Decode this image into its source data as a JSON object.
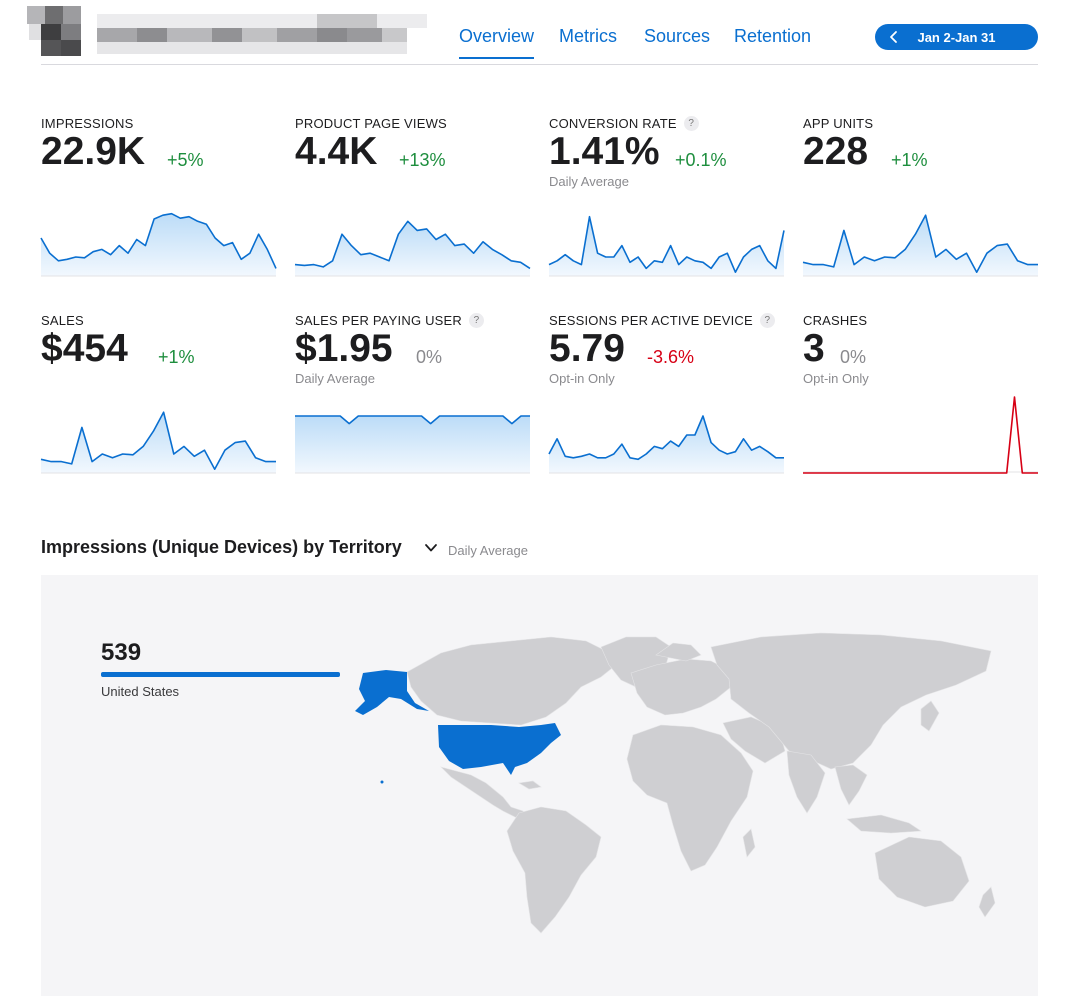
{
  "colors": {
    "accent": "#0a6fd0",
    "positive": "#1e8e3e",
    "negative": "#d70015",
    "neutral": "#8a8a8e",
    "crash_line": "#d70015",
    "map_land": "#cfcfd2",
    "map_highlight": "#0a6fd0"
  },
  "nav": {
    "tabs": [
      {
        "label": "Overview",
        "active": true
      },
      {
        "label": "Metrics",
        "active": false
      },
      {
        "label": "Sources",
        "active": false
      },
      {
        "label": "Retention",
        "active": false
      }
    ]
  },
  "date_range": {
    "label": "Jan 2-Jan 31",
    "icon": "chevron-left-icon"
  },
  "metrics": [
    {
      "label": "IMPRESSIONS",
      "value": "22.9K",
      "change": "+5%",
      "trend": "positive",
      "sub": "",
      "help": false,
      "spark": [
        50,
        30,
        20,
        22,
        25,
        24,
        32,
        35,
        28,
        40,
        30,
        48,
        40,
        75,
        80,
        82,
        76,
        78,
        72,
        68,
        50,
        40,
        44,
        22,
        30,
        55,
        35,
        10
      ],
      "spark_style": "area"
    },
    {
      "label": "PRODUCT PAGE VIEWS",
      "value": "4.4K",
      "change": "+13%",
      "trend": "positive",
      "sub": "",
      "help": false,
      "spark": [
        15,
        14,
        15,
        12,
        20,
        55,
        40,
        28,
        30,
        25,
        20,
        55,
        72,
        60,
        62,
        48,
        55,
        40,
        42,
        30,
        45,
        35,
        28,
        20,
        18,
        10
      ],
      "spark_style": "area"
    },
    {
      "label": "CONVERSION RATE",
      "value": "1.41%",
      "change": "+0.1%",
      "trend": "positive",
      "sub": "Daily Average",
      "help": true,
      "spark": [
        15,
        20,
        28,
        20,
        15,
        78,
        30,
        25,
        25,
        40,
        18,
        25,
        10,
        20,
        18,
        40,
        15,
        25,
        20,
        18,
        10,
        25,
        30,
        5,
        25,
        35,
        40,
        20,
        10,
        60
      ],
      "spark_style": "area"
    },
    {
      "label": "APP UNITS",
      "value": "228",
      "change": "+1%",
      "trend": "positive",
      "sub": "",
      "help": false,
      "spark": [
        18,
        15,
        15,
        12,
        60,
        15,
        25,
        20,
        25,
        24,
        35,
        55,
        80,
        25,
        35,
        22,
        30,
        5,
        30,
        40,
        42,
        20,
        15,
        15
      ],
      "spark_style": "area"
    },
    {
      "label": "SALES",
      "value": "$454",
      "change": "+1%",
      "trend": "positive",
      "sub": "",
      "help": false,
      "spark": [
        18,
        15,
        15,
        12,
        60,
        15,
        25,
        20,
        25,
        24,
        35,
        55,
        80,
        25,
        35,
        22,
        30,
        5,
        30,
        40,
        42,
        20,
        15,
        15
      ],
      "spark_style": "area"
    },
    {
      "label": "SALES PER PAYING USER",
      "value": "$1.95",
      "change": "0%",
      "trend": "neutral",
      "sub": "Daily Average",
      "help": true,
      "spark": [
        75,
        75,
        75,
        75,
        75,
        75,
        65,
        75,
        75,
        75,
        75,
        75,
        75,
        75,
        75,
        65,
        75,
        75,
        75,
        75,
        75,
        75,
        75,
        75,
        65,
        75,
        75
      ],
      "spark_style": "area"
    },
    {
      "label": "SESSIONS PER ACTIVE DEVICE",
      "value": "5.79",
      "change": "-3.6%",
      "trend": "negative",
      "sub": "Opt-in Only",
      "help": true,
      "spark": [
        25,
        45,
        22,
        20,
        22,
        25,
        20,
        20,
        25,
        38,
        20,
        18,
        25,
        35,
        32,
        42,
        35,
        50,
        50,
        75,
        40,
        30,
        25,
        28,
        45,
        30,
        35,
        28,
        20,
        20
      ],
      "spark_style": "area"
    },
    {
      "label": "CRASHES",
      "value": "3",
      "change": "0%",
      "trend": "neutral",
      "sub": "Opt-in Only",
      "help": false,
      "spark": [
        0,
        0,
        0,
        0,
        0,
        0,
        0,
        0,
        0,
        0,
        0,
        0,
        0,
        0,
        0,
        0,
        0,
        0,
        0,
        0,
        0,
        0,
        0,
        0,
        0,
        0,
        0,
        100,
        0,
        0,
        0
      ],
      "spark_style": "line"
    }
  ],
  "territory": {
    "title": "Impressions (Unique Devices) by Territory",
    "subtitle": "Daily Average",
    "top": {
      "value": "539",
      "country": "United States",
      "share": 1.0
    }
  }
}
